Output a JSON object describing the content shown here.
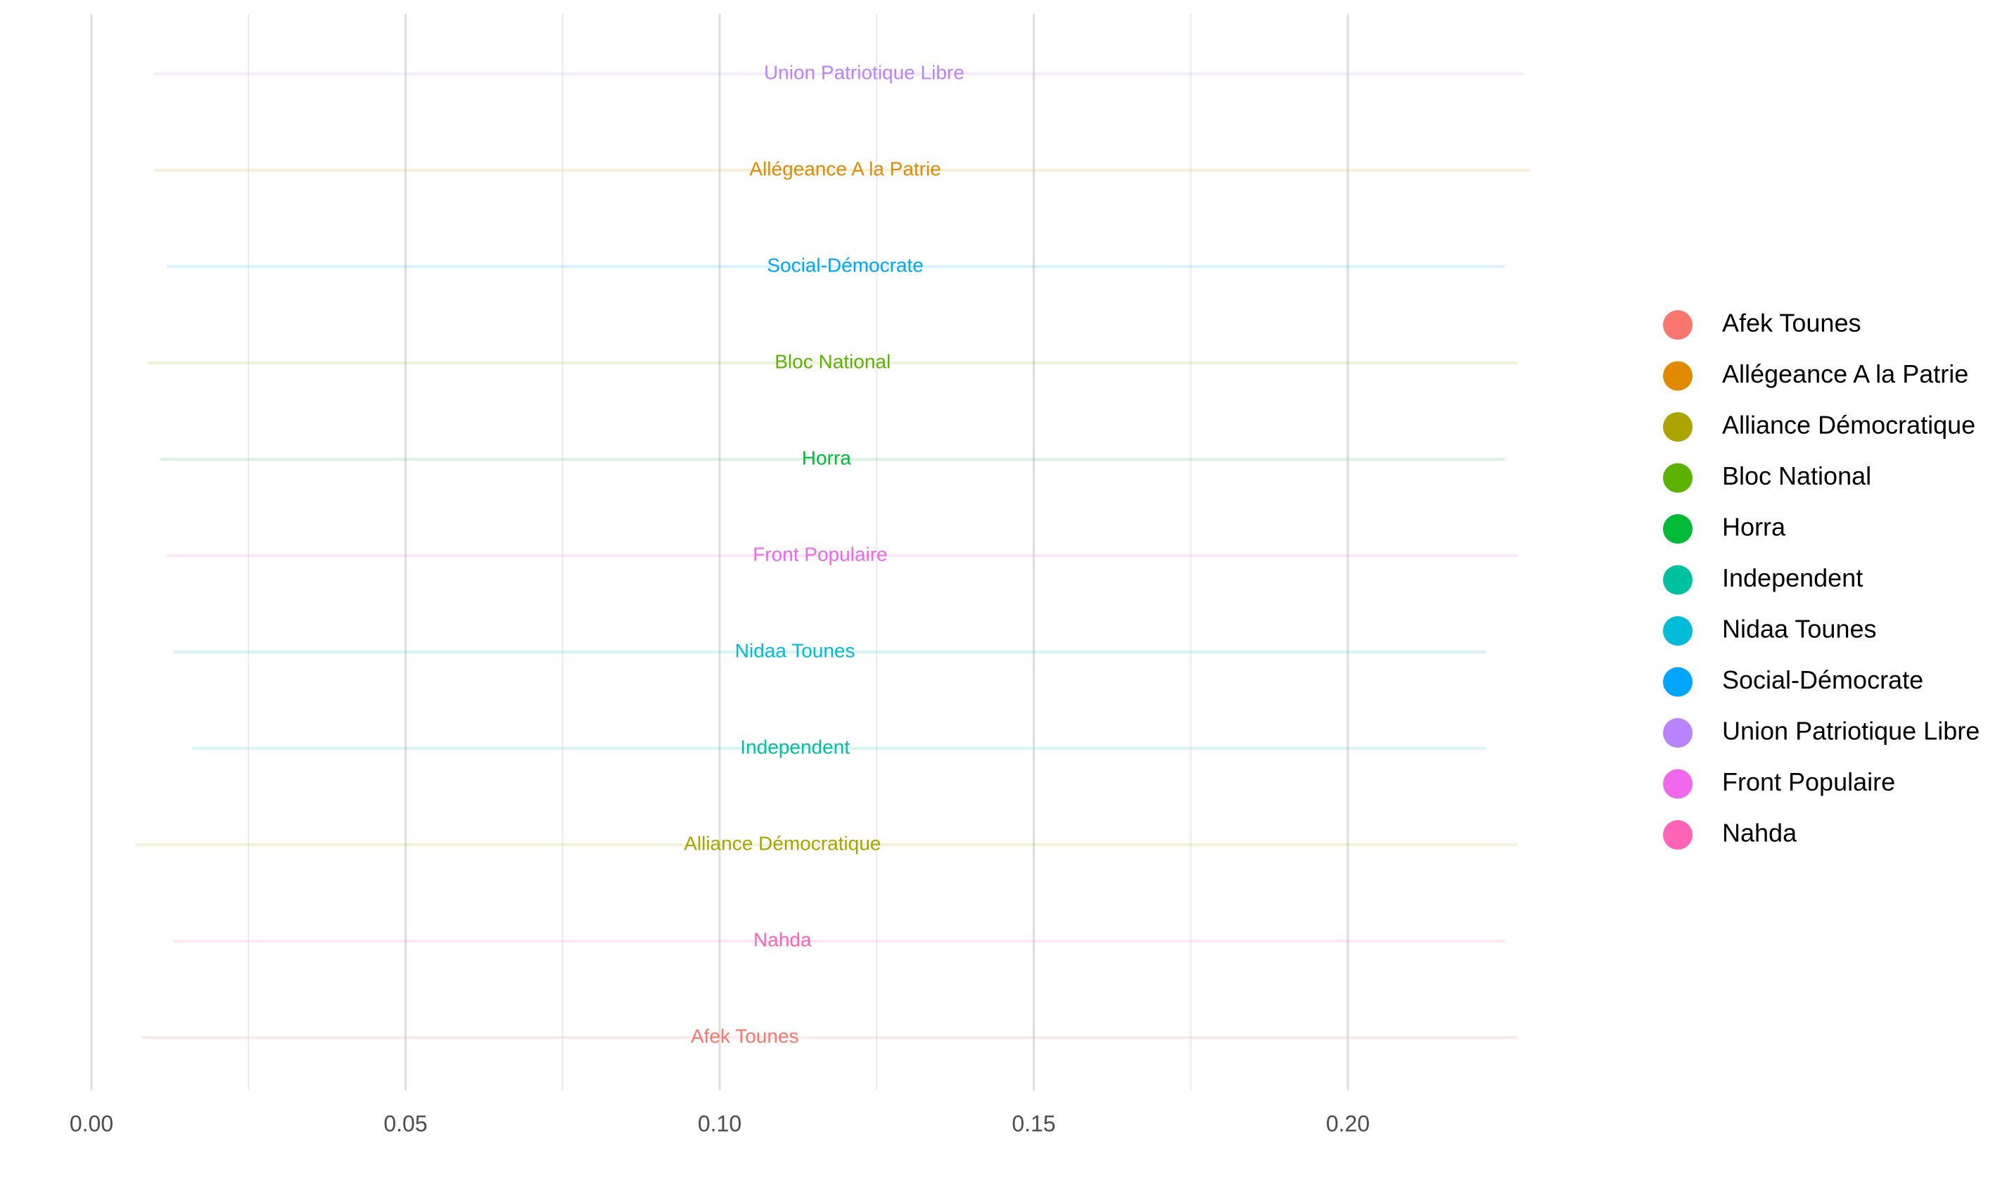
{
  "chart_data": {
    "type": "scatter",
    "title": "",
    "xlabel": "",
    "ylabel": "",
    "xlim": [
      0.0,
      0.228
    ],
    "x_ticks": [
      "0.00",
      "0.05",
      "0.10",
      "0.15",
      "0.20"
    ],
    "x_tick_values": [
      0.0,
      0.05,
      0.1,
      0.15,
      0.2
    ],
    "x_minor_tick_values": [
      0.025,
      0.075,
      0.125,
      0.175
    ],
    "grid": true,
    "legend_position": "right",
    "series": [
      {
        "name": "Union Patriotique Libre",
        "label": "Union Patriotique Libre",
        "color": "#B983FF",
        "x": 0.123,
        "ci": [
          0.01,
          0.228
        ]
      },
      {
        "name": "Allégeance A la Patrie",
        "label": "Allégeance A la Patrie",
        "color": "#E18A00",
        "x": 0.12,
        "ci": [
          0.01,
          0.229
        ]
      },
      {
        "name": "Social-Démocrate",
        "label": "Social-Démocrate",
        "color": "#00A5FF",
        "x": 0.12,
        "ci": [
          0.012,
          0.225
        ]
      },
      {
        "name": "Bloc National",
        "label": "Bloc National",
        "color": "#5BB300",
        "x": 0.118,
        "ci": [
          0.009,
          0.227
        ]
      },
      {
        "name": "Horra",
        "label": "Horra",
        "color": "#00BA38",
        "x": 0.117,
        "ci": [
          0.011,
          0.225
        ]
      },
      {
        "name": "Front Populaire",
        "label": "Front Populaire",
        "color": "#EF67EB",
        "x": 0.116,
        "ci": [
          0.012,
          0.227
        ]
      },
      {
        "name": "Nidaa Tounes",
        "label": "Nidaa Tounes",
        "color": "#00BCD8",
        "x": 0.112,
        "ci": [
          0.013,
          0.222
        ]
      },
      {
        "name": "Independent",
        "label": "Independent",
        "color": "#00C19F",
        "x": 0.112,
        "ci": [
          0.016,
          0.222
        ]
      },
      {
        "name": "Alliance Démocratique",
        "label": "Alliance Démocratique",
        "color": "#ABA300",
        "x": 0.11,
        "ci": [
          0.007,
          0.227
        ]
      },
      {
        "name": "Nahda",
        "label": "Nahda",
        "color": "#FF63B6",
        "x": 0.11,
        "ci": [
          0.013,
          0.225
        ]
      },
      {
        "name": "Afek Tounes",
        "label": "Afek Tounes",
        "color": "#F8766D",
        "x": 0.104,
        "ci": [
          0.008,
          0.227
        ]
      }
    ],
    "legend": [
      {
        "label": "Afek Tounes",
        "color": "#F8766D"
      },
      {
        "label": "Allégeance A la Patrie",
        "color": "#E18A00"
      },
      {
        "label": "Alliance Démocratique",
        "color": "#ABA300"
      },
      {
        "label": "Bloc National",
        "color": "#5BB300"
      },
      {
        "label": "Horra",
        "color": "#00BA38"
      },
      {
        "label": "Independent",
        "color": "#00C19F"
      },
      {
        "label": "Nidaa Tounes",
        "color": "#00BCD8"
      },
      {
        "label": "Social-Démocrate",
        "color": "#00A5FF"
      },
      {
        "label": "Union Patriotique Libre",
        "color": "#B983FF"
      },
      {
        "label": "Front Populaire",
        "color": "#EF67EB"
      },
      {
        "label": "Nahda",
        "color": "#FF63B6"
      }
    ],
    "legend_icon": "circle-icon"
  }
}
